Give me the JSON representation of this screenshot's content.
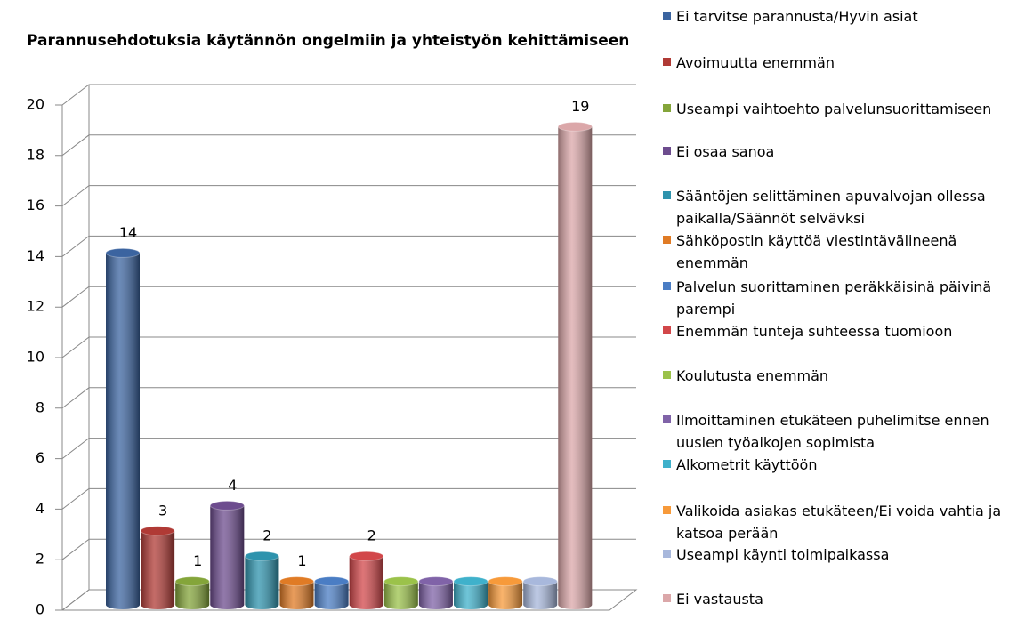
{
  "chart_data": {
    "type": "bar3d",
    "title": "Parannusehdotuksia käytännön ongelmiin ja yhteistyön kehittämiseen",
    "categories": [
      "Ei tarvitse parannusta/Hyvin asiat",
      "Avoimuutta enemmän",
      "Useampi vaihtoehto palvelunsuorittamiseen",
      "Ei osaa sanoa",
      "Sääntöjen selittäminen apuvalvojan ollessa paikalla/Säännöt selvävksi",
      "Sähköpostin käyttöä viestintävälineenä enemmän",
      "Palvelun suorittaminen peräkkäisinä päivinä parempi",
      "Enemmän tunteja suhteessa tuomioon",
      "Koulutusta enemmän",
      "Ilmoittaminen etukäteen puhelimitse ennen uusien työaikojen sopimista",
      "Alkometrit käyttöön",
      "Valikoida asiakas etukäteen/Ei voida vahtia ja katsoa perään",
      "Useampi käynti toimipaikassa",
      "Ei vastausta"
    ],
    "values": [
      14,
      3,
      1,
      4,
      2,
      1,
      1,
      2,
      1,
      1,
      1,
      1,
      1,
      19
    ],
    "labeled": [
      true,
      true,
      true,
      true,
      true,
      true,
      false,
      true,
      false,
      false,
      false,
      false,
      false,
      true
    ],
    "colors": [
      "#3b64a0",
      "#b03a35",
      "#84a53a",
      "#6d4c8e",
      "#2e93ad",
      "#e07b25",
      "#4a7dc4",
      "#d2474a",
      "#9bc24a",
      "#8063a8",
      "#3fb1cb",
      "#f79a3a",
      "#a8b8dc",
      "#dba7a9"
    ],
    "ylim": [
      0,
      20
    ],
    "yticks": [
      0,
      2,
      4,
      6,
      8,
      10,
      12,
      14,
      16,
      18,
      20
    ],
    "grid": true
  }
}
